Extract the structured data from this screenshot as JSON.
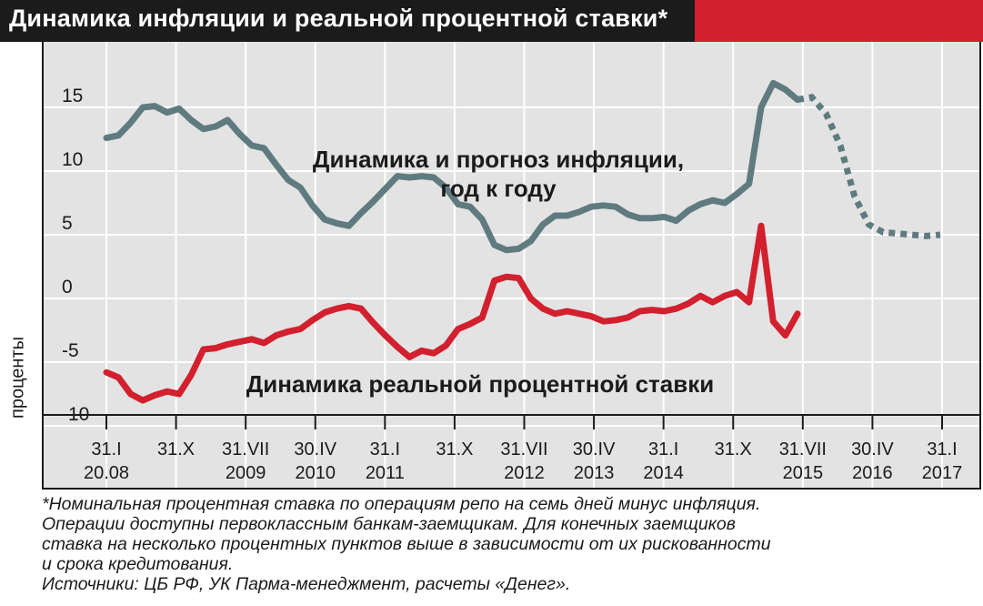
{
  "header": {
    "title": "Динамика инфляции и реальной процентной ставки*",
    "accent_color": "#d2202e",
    "dark_color": "#1b1b1b"
  },
  "chart_data": {
    "type": "line",
    "ylabel": "проценты",
    "ylim": [
      -10,
      18
    ],
    "y_ticks": [
      "15",
      "10",
      "5",
      "0",
      "-5",
      "-10"
    ],
    "x_ticks": [
      {
        "top": "31.I",
        "bottom": "20.08"
      },
      {
        "top": "31.X",
        "bottom": ""
      },
      {
        "top": "31.VII",
        "bottom": "2009"
      },
      {
        "top": "30.IV",
        "bottom": "2010"
      },
      {
        "top": "31.I",
        "bottom": "2011"
      },
      {
        "top": "31.X",
        "bottom": ""
      },
      {
        "top": "31.VII",
        "bottom": "2012"
      },
      {
        "top": "30.IV",
        "bottom": "2013"
      },
      {
        "top": "31.I",
        "bottom": "2014"
      },
      {
        "top": "31.X",
        "bottom": ""
      },
      {
        "top": "31.VII",
        "bottom": "2015"
      },
      {
        "top": "30.IV",
        "bottom": "2016"
      },
      {
        "top": "31.I",
        "bottom": "2017"
      }
    ],
    "grid": true,
    "series": [
      {
        "name": "Динамика и прогноз инфляции, год к году",
        "color": "#5f7b80",
        "values": [
          12.6,
          12.8,
          13.8,
          15.0,
          15.1,
          14.6,
          14.9,
          14.0,
          13.3,
          13.5,
          14.0,
          12.9,
          12.0,
          11.8,
          10.5,
          9.3,
          8.7,
          7.3,
          6.2,
          5.9,
          5.7,
          6.7,
          7.6,
          8.6,
          9.6,
          9.5,
          9.6,
          9.5,
          8.7,
          7.4,
          7.2,
          6.2,
          4.2,
          3.8,
          3.9,
          4.5,
          5.8,
          6.5,
          6.5,
          6.8,
          7.2,
          7.3,
          7.2,
          6.6,
          6.3,
          6.3,
          6.4,
          6.1,
          6.9,
          7.4,
          7.7,
          7.5,
          8.2,
          9.0,
          15.0,
          16.9,
          16.4,
          15.6
        ],
        "forecast": [
          15.6,
          15.8,
          14.5,
          12.0,
          8.0,
          5.8,
          5.2,
          5.1,
          5.0,
          4.9,
          5.0
        ],
        "forecast_style": "dotted"
      },
      {
        "name": "Динамика реальной процентной ставки",
        "color": "#d2202e",
        "values": [
          -5.8,
          -6.2,
          -7.5,
          -8.0,
          -7.6,
          -7.3,
          -7.5,
          -6.0,
          -4.0,
          -3.9,
          -3.6,
          -3.4,
          -3.2,
          -3.5,
          -2.9,
          -2.6,
          -2.4,
          -1.7,
          -1.1,
          -0.8,
          -0.6,
          -0.8,
          -1.9,
          -2.9,
          -3.8,
          -4.6,
          -4.1,
          -4.3,
          -3.7,
          -2.4,
          -2.0,
          -1.5,
          1.4,
          1.7,
          1.6,
          0.0,
          -0.8,
          -1.2,
          -1.0,
          -1.2,
          -1.4,
          -1.8,
          -1.7,
          -1.5,
          -1.0,
          -0.9,
          -1.0,
          -0.8,
          -0.4,
          0.2,
          -0.3,
          0.2,
          0.5,
          -0.3,
          5.7,
          -1.8,
          -2.9,
          -1.2
        ]
      }
    ]
  },
  "annotations": {
    "inflation_line1": "Динамика и прогноз инфляции,",
    "inflation_line2": "год к году",
    "rate_label": "Динамика реальной процентной ставки"
  },
  "footnote": {
    "lines": [
      "*Номинальная процентная ставка по операциям репо на семь дней минус инфляция.",
      "Операции доступны первоклассным банкам-заемщикам. Для конечных заемщиков",
      "ставка на несколько процентных пунктов выше в зависимости от их рискованности",
      "и срока кредитования.",
      "Источники: ЦБ РФ, УК Парма-менеджмент, расчеты «Денег»."
    ]
  }
}
